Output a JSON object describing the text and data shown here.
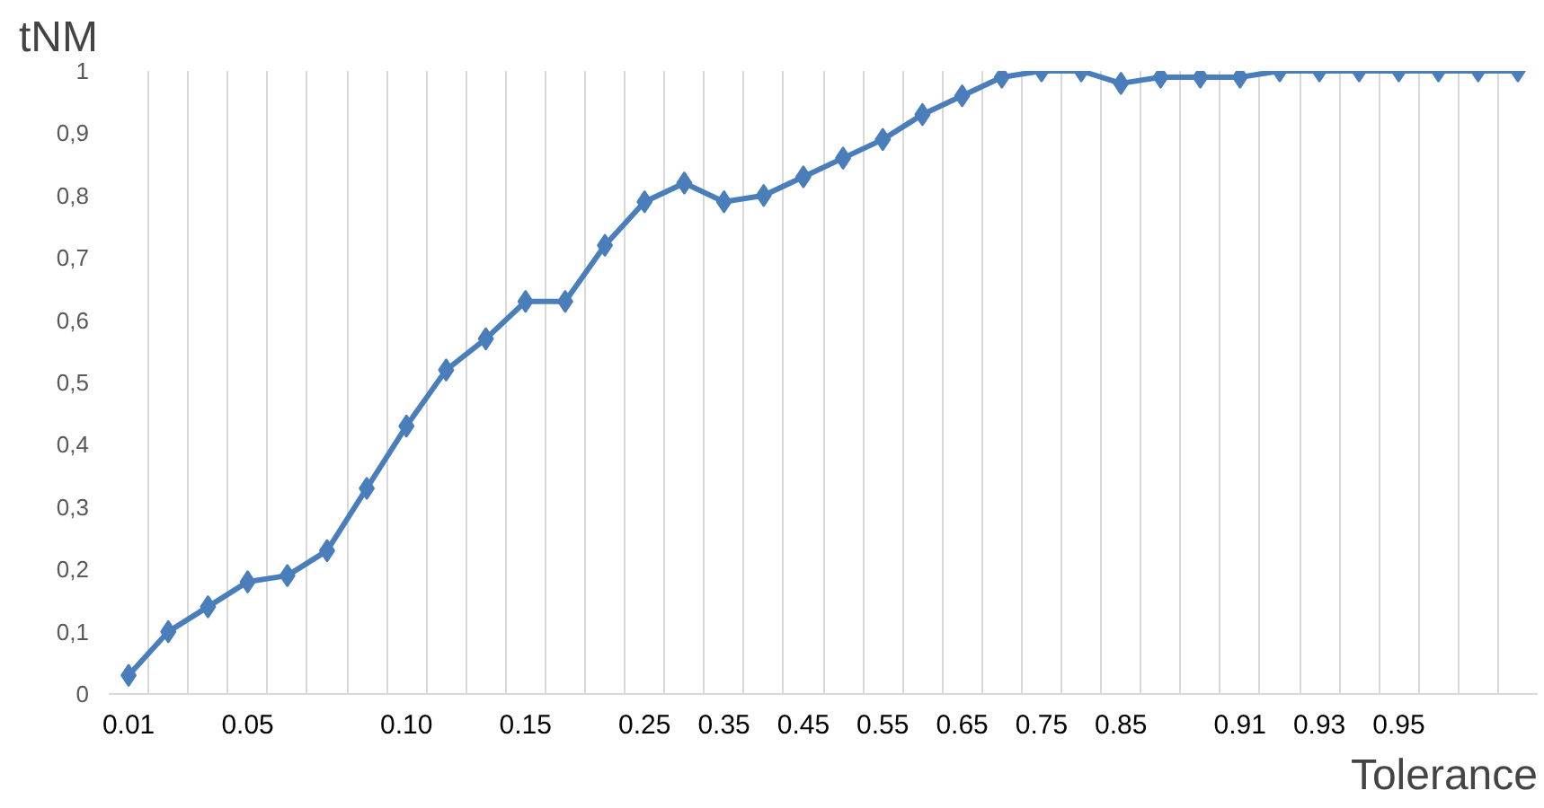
{
  "chart_data": {
    "type": "line",
    "ylabel": "tNM",
    "xlabel": "Tolerance",
    "categories": [
      "0.01",
      null,
      null,
      "0.05",
      null,
      null,
      null,
      "0.10",
      null,
      null,
      "0.15",
      null,
      null,
      "0.25",
      null,
      "0.35",
      null,
      "0.45",
      null,
      "0.55",
      null,
      "0.65",
      null,
      "0.75",
      null,
      "0.85",
      null,
      null,
      "0.91",
      null,
      "0.93",
      null,
      "0.95",
      null,
      null,
      null
    ],
    "series": [
      {
        "color": "#4a7ebb",
        "values": [
          0.03,
          0.1,
          0.14,
          0.18,
          0.19,
          0.23,
          0.33,
          0.43,
          0.52,
          0.57,
          0.63,
          0.63,
          0.72,
          0.79,
          0.82,
          0.79,
          0.8,
          0.83,
          0.86,
          0.89,
          0.93,
          0.96,
          0.99,
          1.0,
          1.0,
          0.98,
          0.99,
          0.99,
          0.99,
          1.0,
          1.0,
          1.0,
          1.0,
          1.0,
          1.0,
          1.0
        ]
      }
    ],
    "ylim": [
      0,
      1
    ],
    "yticks": [
      0,
      {
        "value": 0.1,
        "label": "0,1"
      },
      {
        "value": 0.2,
        "label": "0,2"
      },
      {
        "value": 0.3,
        "label": "0,3"
      },
      {
        "value": 0.4,
        "label": "0,4"
      },
      {
        "value": 0.5,
        "label": "0,5"
      },
      {
        "value": 0.6,
        "label": "0,6"
      },
      {
        "value": 0.7,
        "label": "0,7"
      },
      {
        "value": 0.8,
        "label": "0,8"
      },
      {
        "value": 0.9,
        "label": "0,9"
      },
      1
    ],
    "grid": "x",
    "marker": "diamond",
    "line_style": "solid"
  }
}
